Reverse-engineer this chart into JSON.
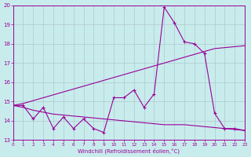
{
  "xlabel": "Windchill (Refroidissement éolien,°C)",
  "bg_color": "#c8ecec",
  "line_color": "#990099",
  "grid_color": "#b0c8d0",
  "x_data": [
    0,
    1,
    2,
    3,
    4,
    5,
    6,
    7,
    8,
    9,
    10,
    11,
    12,
    13,
    14,
    15,
    16,
    17,
    18,
    19,
    20,
    21,
    22,
    23
  ],
  "y_main": [
    14.8,
    14.8,
    14.1,
    14.7,
    13.6,
    14.2,
    13.6,
    14.1,
    13.6,
    13.4,
    15.2,
    15.2,
    15.6,
    14.7,
    15.4,
    19.9,
    19.1,
    18.1,
    18.0,
    17.5,
    14.4,
    13.6,
    13.6,
    13.5
  ],
  "y_upper": [
    14.8,
    14.9,
    15.05,
    15.2,
    15.35,
    15.5,
    15.65,
    15.8,
    15.95,
    16.1,
    16.25,
    16.4,
    16.55,
    16.7,
    16.85,
    17.0,
    17.15,
    17.3,
    17.45,
    17.6,
    17.75,
    17.8,
    17.85,
    17.9
  ],
  "y_lower": [
    14.8,
    14.7,
    14.55,
    14.45,
    14.35,
    14.3,
    14.25,
    14.2,
    14.15,
    14.1,
    14.05,
    14.0,
    13.95,
    13.9,
    13.85,
    13.8,
    13.8,
    13.8,
    13.75,
    13.7,
    13.65,
    13.6,
    13.55,
    13.5
  ],
  "ylim_min": 13,
  "ylim_max": 20,
  "xlim_min": 0,
  "xlim_max": 23
}
